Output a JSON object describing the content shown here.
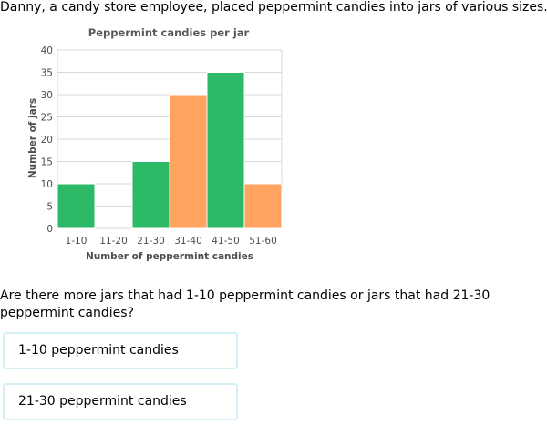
{
  "intro_text": "Danny, a candy store employee, placed peppermint candies into jars of various sizes.",
  "question_text": "Are there more jars that had 1-10 peppermint candies or jars that had 21-30 peppermint candies?",
  "choices": [
    {
      "label": "1-10 peppermint candies"
    },
    {
      "label": "21-30 peppermint candies"
    }
  ],
  "colors": {
    "green": "#2dba67",
    "orange": "#ffa361",
    "grid": "#d9d9d9",
    "axis_text": "#4d4d4d",
    "title_text": "#5a5a5a",
    "choice_border": "#d4eef5"
  },
  "chart_data": {
    "type": "bar",
    "title": "Peppermint candies per jar",
    "xlabel": "Number of peppermint candies",
    "ylabel": "Number of jars",
    "categories": [
      "1-10",
      "11-20",
      "21-30",
      "31-40",
      "41-50",
      "51-60"
    ],
    "values": [
      10,
      0,
      15,
      30,
      35,
      10
    ],
    "bar_colors": [
      "#2dba67",
      "#2dba67",
      "#2dba67",
      "#ffa361",
      "#2dba67",
      "#ffa361"
    ],
    "ylim": [
      0,
      40
    ],
    "yticks": [
      0,
      5,
      10,
      15,
      20,
      25,
      30,
      35,
      40
    ],
    "grid": true,
    "legend": "none"
  }
}
